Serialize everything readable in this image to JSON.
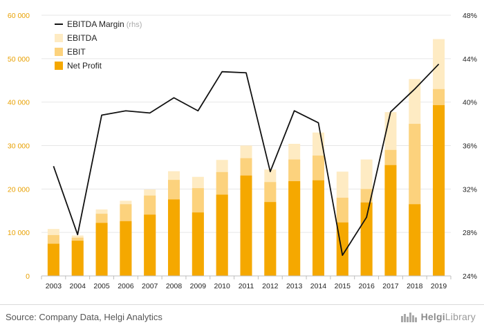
{
  "chart_data": {
    "type": "bar",
    "stacked": true,
    "categories": [
      "2003",
      "2004",
      "2005",
      "2006",
      "2007",
      "2008",
      "2009",
      "2010",
      "2011",
      "2012",
      "2013",
      "2014",
      "2015",
      "2016",
      "2017",
      "2018",
      "2019"
    ],
    "series": [
      {
        "name": "Net Profit",
        "color": "#f5a800",
        "values": [
          7400,
          8100,
          12200,
          12600,
          14100,
          17600,
          14600,
          18700,
          23100,
          17000,
          21800,
          22000,
          12300,
          16900,
          25500,
          16500,
          39300
        ]
      },
      {
        "name": "EBIT",
        "color": "#fcd27d",
        "values": [
          9400,
          8800,
          14300,
          16500,
          18500,
          22100,
          20200,
          23900,
          27100,
          21600,
          26800,
          27700,
          18000,
          20000,
          29000,
          35000,
          43000
        ]
      },
      {
        "name": "EBITDA",
        "color": "#feebc3",
        "values": [
          10800,
          9300,
          15300,
          17300,
          19900,
          24100,
          22800,
          26700,
          30000,
          24500,
          30400,
          33000,
          24000,
          26800,
          37700,
          45300,
          54500
        ]
      }
    ],
    "line": {
      "name": "EBITDA Margin",
      "suffix": "(rhs)",
      "color": "#111111",
      "values": [
        34.1,
        27.8,
        38.8,
        39.2,
        39.0,
        40.4,
        39.2,
        42.8,
        42.7,
        33.6,
        39.2,
        38.1,
        25.9,
        29.4,
        39.1,
        41.2,
        43.5
      ]
    },
    "ylim": [
      0,
      60000
    ],
    "yticks": [
      "0",
      "10 000",
      "20 000",
      "30 000",
      "40 000",
      "50 000",
      "60 000"
    ],
    "y2lim": [
      24,
      48
    ],
    "y2ticks": [
      "24%",
      "28%",
      "32%",
      "36%",
      "40%",
      "44%",
      "48%"
    ],
    "legend_position": "top-left",
    "grid": true,
    "axis_color": "#e8a000",
    "text_color": "#222222"
  },
  "footer": {
    "source": "Source: Company Data, Helgi Analytics",
    "brand_bold": "Helgi",
    "brand_rest": "Library"
  }
}
